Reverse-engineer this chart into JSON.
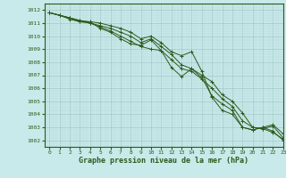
{
  "xlabel": "Graphe pression niveau de la mer (hPa)",
  "xlim": [
    -0.5,
    23
  ],
  "ylim": [
    1001.5,
    1012.5
  ],
  "yticks": [
    1002,
    1003,
    1004,
    1005,
    1006,
    1007,
    1008,
    1009,
    1010,
    1011,
    1012
  ],
  "xticks": [
    0,
    1,
    2,
    3,
    4,
    5,
    6,
    7,
    8,
    9,
    10,
    11,
    12,
    13,
    14,
    15,
    16,
    17,
    18,
    19,
    20,
    21,
    22,
    23
  ],
  "background_color": "#c8eaea",
  "grid_color_major": "#9bbfbf",
  "grid_color_minor": "#b8d8d8",
  "line_color": "#2d5a1b",
  "series": [
    [
      1011.8,
      1011.6,
      1011.3,
      1011.1,
      1011.1,
      1010.6,
      1010.3,
      1009.8,
      1009.4,
      1009.3,
      1009.7,
      1008.9,
      1007.6,
      1006.9,
      1007.5,
      1006.8,
      1005.4,
      1004.8,
      1004.3,
      1003.0,
      1002.8,
      1003.0,
      1002.7,
      1002.0
    ],
    [
      1011.8,
      1011.6,
      1011.4,
      1011.1,
      1011.0,
      1010.7,
      1010.4,
      1010.0,
      1009.6,
      1009.2,
      1009.0,
      1008.9,
      1008.2,
      1007.5,
      1007.3,
      1006.7,
      1006.0,
      1005.2,
      1004.6,
      1003.5,
      1003.0,
      1002.9,
      1002.6,
      1002.1
    ],
    [
      1011.8,
      1011.6,
      1011.4,
      1011.2,
      1011.0,
      1010.8,
      1010.6,
      1010.3,
      1010.0,
      1009.5,
      1009.8,
      1009.2,
      1008.6,
      1007.8,
      1007.5,
      1007.0,
      1006.5,
      1005.5,
      1005.0,
      1004.1,
      1003.0,
      1002.9,
      1003.1,
      1002.2
    ],
    [
      1011.8,
      1011.6,
      1011.4,
      1011.2,
      1011.1,
      1011.0,
      1010.8,
      1010.6,
      1010.3,
      1009.8,
      1010.0,
      1009.5,
      1008.8,
      1008.5,
      1008.8,
      1007.3,
      1005.3,
      1004.3,
      1004.0,
      1003.0,
      1002.8,
      1003.0,
      1003.2,
      1002.5
    ]
  ]
}
